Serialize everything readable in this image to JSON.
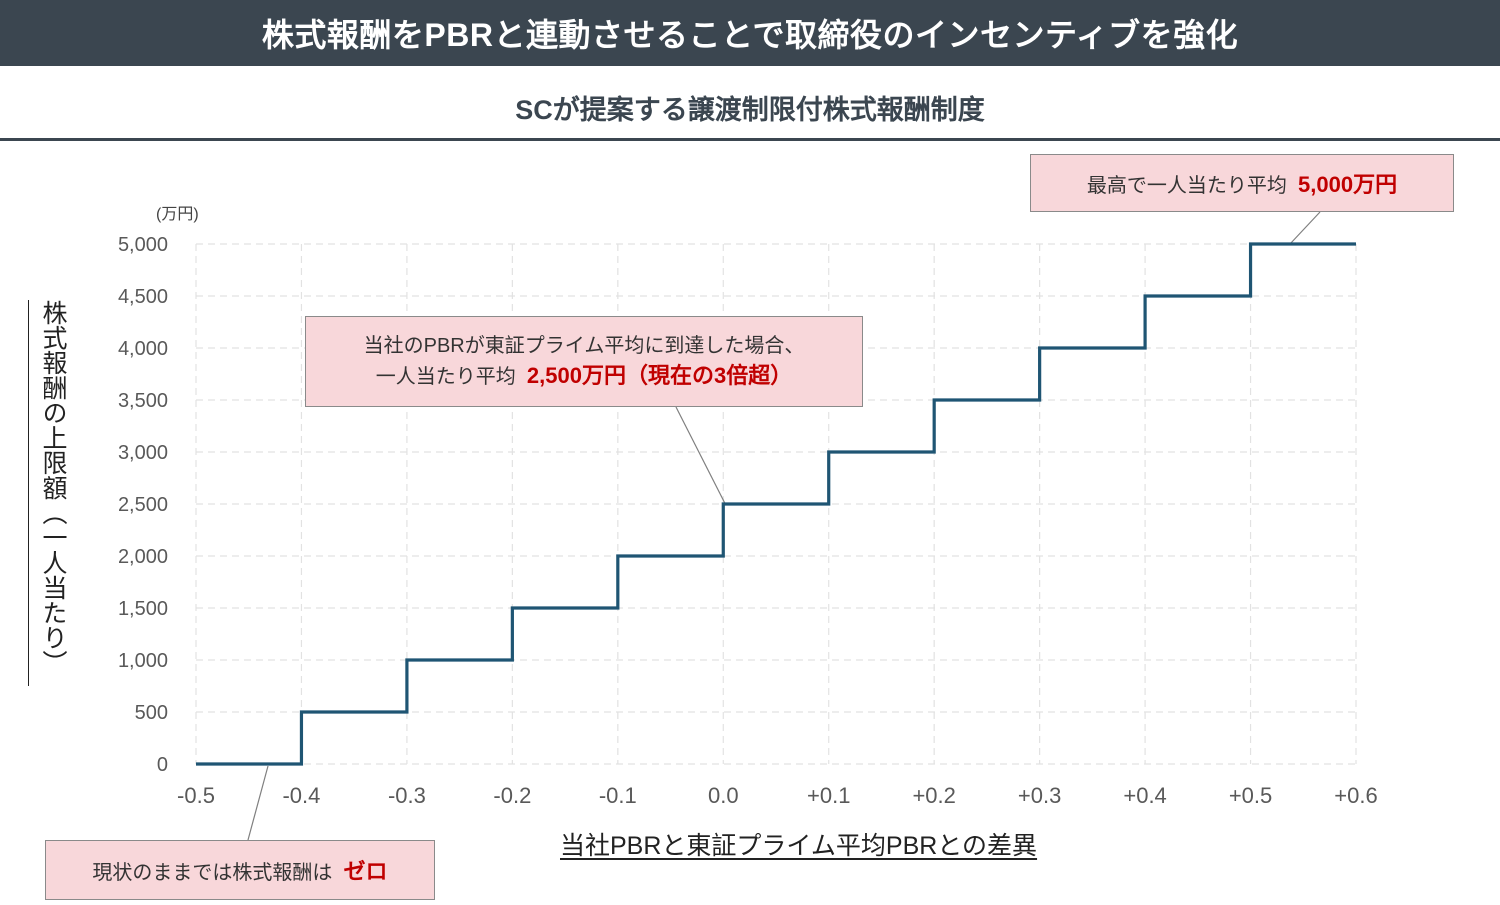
{
  "header": {
    "title": "株式報酬をPBRと連動させることで取締役のインセンティブを強化",
    "subtitle": "SCが提案する譲渡制限付株式報酬制度"
  },
  "chart_data": {
    "type": "line",
    "step": true,
    "ylabel": "株式報酬の上限額（一人当たり）",
    "xlabel": "当社PBRと東証プライム平均PBRとの差異",
    "yunit": "(万円)",
    "xlim": [
      -0.5,
      0.6
    ],
    "ylim": [
      0,
      5000
    ],
    "x_ticks": [
      "-0.5",
      "-0.4",
      "-0.3",
      "-0.2",
      "-0.1",
      "0.0",
      "+0.1",
      "+0.2",
      "+0.3",
      "+0.4",
      "+0.5",
      "+0.6"
    ],
    "x_tick_values": [
      -0.5,
      -0.4,
      -0.3,
      -0.2,
      -0.1,
      0.0,
      0.1,
      0.2,
      0.3,
      0.4,
      0.5,
      0.6
    ],
    "y_ticks": [
      "0",
      "500",
      "1,000",
      "1,500",
      "2,000",
      "2,500",
      "3,000",
      "3,500",
      "4,000",
      "4,500",
      "5,000"
    ],
    "y_tick_values": [
      0,
      500,
      1000,
      1500,
      2000,
      2500,
      3000,
      3500,
      4000,
      4500,
      5000
    ],
    "grid": true,
    "color": "#1f5573",
    "series": [
      {
        "x": [
          -0.5,
          -0.4,
          -0.3,
          -0.2,
          -0.1,
          0.0,
          0.1,
          0.2,
          0.3,
          0.4,
          0.5,
          0.6
        ],
        "values": [
          0,
          500,
          1000,
          1500,
          2000,
          2500,
          3000,
          3500,
          4000,
          4500,
          5000,
          5000
        ]
      }
    ]
  },
  "callouts": {
    "top": {
      "text": "最高で一人当たり平均",
      "highlight": "5,000万円"
    },
    "mid": {
      "line1": "当社のPBRが東証プライム平均に到達した場合、",
      "line2": "一人当たり平均",
      "highlight": "2,500万円（現在の3倍超）"
    },
    "bottom": {
      "text": "現状のままでは株式報酬は",
      "highlight": "ゼロ"
    }
  },
  "colors": {
    "banner": "#3b4650",
    "callout_bg": "#f8d7da",
    "highlight": "#c00000"
  }
}
